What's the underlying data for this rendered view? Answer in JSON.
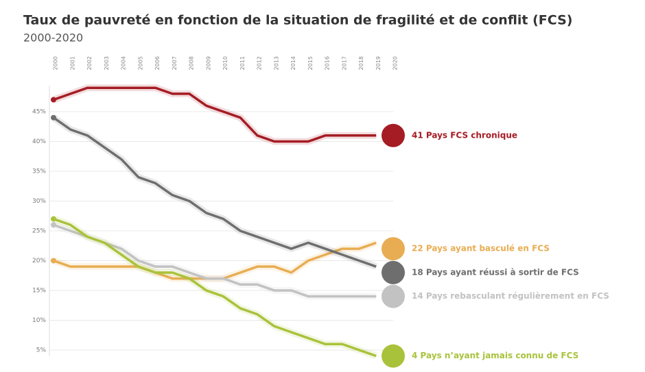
{
  "chart_data": {
    "type": "line",
    "title": "Taux de pauvreté en fonction de la situation de fragilité et de conflit (FCS)",
    "subtitle": "2000-2020",
    "categories": [
      "2000",
      "2001",
      "2002",
      "2003",
      "2004",
      "2005",
      "2006",
      "2007",
      "2008",
      "2009",
      "2010",
      "2011",
      "2012",
      "2013",
      "2014",
      "2015",
      "2016",
      "2017",
      "2018",
      "2019",
      "2020"
    ],
    "ylim": [
      3.5,
      50
    ],
    "yticks": [
      {
        "value": 5,
        "label": "5%"
      },
      {
        "value": 10,
        "label": "10%"
      },
      {
        "value": 15,
        "label": "15%"
      },
      {
        "value": 20,
        "label": "20%"
      },
      {
        "value": 25,
        "label": "25%"
      },
      {
        "value": 30,
        "label": "30%"
      },
      {
        "value": 35,
        "label": "35%"
      },
      {
        "value": 40,
        "label": "40%"
      },
      {
        "value": 45,
        "label": "45%"
      }
    ],
    "grid": true,
    "series": [
      {
        "name": "41 Pays FCS chronique",
        "color": "#a51c24",
        "values": [
          47,
          48,
          49,
          49,
          49,
          49,
          49,
          48,
          48,
          46,
          45,
          44,
          41,
          40,
          40,
          40,
          41,
          41,
          41,
          41,
          41
        ]
      },
      {
        "name": "22 Pays ayant basculé en FCS",
        "color": "#e8ad52",
        "values": [
          20,
          19,
          19,
          19,
          19,
          19,
          18,
          17,
          17,
          17,
          17,
          18,
          19,
          19,
          18,
          20,
          21,
          22,
          22,
          23,
          22
        ]
      },
      {
        "name": "18 Pays ayant réussi à sortir de FCS",
        "color": "#6e6e6e",
        "values": [
          44,
          42,
          41,
          39,
          37,
          34,
          33,
          31,
          30,
          28,
          27,
          25,
          24,
          23,
          22,
          23,
          22,
          21,
          20,
          19,
          18
        ]
      },
      {
        "name": "14 Pays rebasculant régulièrement en FCS",
        "color": "#c2c2c2",
        "values": [
          26,
          25,
          24,
          23,
          22,
          20,
          19,
          19,
          18,
          17,
          17,
          16,
          16,
          15,
          15,
          14,
          14,
          14,
          14,
          14,
          14
        ]
      },
      {
        "name": "4 Pays n’ayant jamais connu de FCS",
        "color": "#a9c23b",
        "values": [
          27,
          26,
          24,
          23,
          21,
          19,
          18,
          18,
          17,
          15,
          14,
          12,
          11,
          9,
          8,
          7,
          6,
          6,
          5,
          4,
          4
        ]
      }
    ]
  }
}
